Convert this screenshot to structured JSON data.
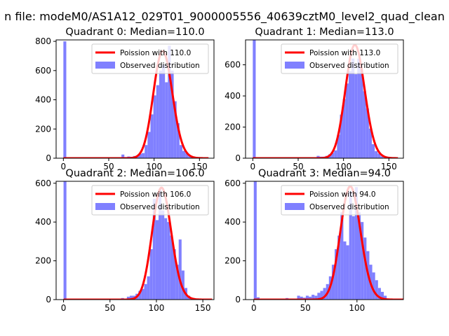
{
  "figure": {
    "suptitle": "n file: modeM0/AS1A12_029T01_9000005556_40639cztM0_level2_quad_clean"
  },
  "colors": {
    "fit_line": "#ff0000",
    "histogram": "#8080ff",
    "axis": "#000000"
  },
  "chart_data": [
    {
      "type": "bar",
      "title": "Quadrant 0: Median=110.0",
      "xlim": [
        -8,
        166
      ],
      "ylim": [
        0,
        810
      ],
      "xticks": [
        0,
        50,
        100,
        150
      ],
      "yticks": [
        0,
        200,
        400,
        600,
        800
      ],
      "legend": {
        "placement": "upper-right",
        "entries": [
          "Poission with 110.0",
          "Observed distribution"
        ]
      },
      "series": [
        {
          "name": "Poission with 110.0",
          "kind": "line",
          "mean": 110.0,
          "scale": 19300
        },
        {
          "name": "Observed distribution",
          "kind": "histogram",
          "bin_width": 3.2,
          "bins": [
            {
              "x": 0,
              "y": 800
            },
            {
              "x": 64,
              "y": 25
            },
            {
              "x": 67.2,
              "y": 8
            },
            {
              "x": 70.4,
              "y": 12
            },
            {
              "x": 73.6,
              "y": 10
            },
            {
              "x": 76.8,
              "y": 15
            },
            {
              "x": 80,
              "y": 15
            },
            {
              "x": 83.2,
              "y": 30
            },
            {
              "x": 86.4,
              "y": 35
            },
            {
              "x": 89.6,
              "y": 90
            },
            {
              "x": 92.8,
              "y": 180
            },
            {
              "x": 96,
              "y": 300
            },
            {
              "x": 99.2,
              "y": 430
            },
            {
              "x": 102.4,
              "y": 500
            },
            {
              "x": 105.6,
              "y": 600
            },
            {
              "x": 108.8,
              "y": 640
            },
            {
              "x": 112,
              "y": 520
            },
            {
              "x": 115.2,
              "y": 770
            },
            {
              "x": 118.4,
              "y": 600
            },
            {
              "x": 121.6,
              "y": 390
            },
            {
              "x": 124.8,
              "y": 240
            },
            {
              "x": 128,
              "y": 90
            },
            {
              "x": 131.2,
              "y": 50
            },
            {
              "x": 134.4,
              "y": 35
            },
            {
              "x": 137.6,
              "y": 20
            },
            {
              "x": 140.8,
              "y": 8
            }
          ]
        }
      ]
    },
    {
      "type": "bar",
      "title": "Quadrant 1: Median=113.0",
      "xlim": [
        -8,
        166
      ],
      "ylim": [
        0,
        760
      ],
      "xticks": [
        0,
        50,
        100,
        150
      ],
      "yticks": [
        0,
        200,
        400,
        600
      ],
      "legend": {
        "placement": "upper-right",
        "entries": [
          "Poission with 113.0",
          "Observed distribution"
        ]
      },
      "series": [
        {
          "name": "Poission with 113.0",
          "kind": "line",
          "mean": 113.0,
          "scale": 19400
        },
        {
          "name": "Observed distribution",
          "kind": "histogram",
          "bin_width": 3.2,
          "bins": [
            {
              "x": 0,
              "y": 760
            },
            {
              "x": 70.4,
              "y": 15
            },
            {
              "x": 73.6,
              "y": 10
            },
            {
              "x": 76.8,
              "y": 10
            },
            {
              "x": 80,
              "y": 15
            },
            {
              "x": 83.2,
              "y": 25
            },
            {
              "x": 86.4,
              "y": 35
            },
            {
              "x": 89.6,
              "y": 50
            },
            {
              "x": 92.8,
              "y": 150
            },
            {
              "x": 96,
              "y": 280
            },
            {
              "x": 99.2,
              "y": 380
            },
            {
              "x": 102.4,
              "y": 480
            },
            {
              "x": 105.6,
              "y": 560
            },
            {
              "x": 108.8,
              "y": 640
            },
            {
              "x": 112,
              "y": 540
            },
            {
              "x": 115.2,
              "y": 640
            },
            {
              "x": 118.4,
              "y": 570
            },
            {
              "x": 121.6,
              "y": 430
            },
            {
              "x": 124.8,
              "y": 320
            },
            {
              "x": 128,
              "y": 190
            },
            {
              "x": 131.2,
              "y": 90
            },
            {
              "x": 134.4,
              "y": 45
            },
            {
              "x": 137.6,
              "y": 30
            },
            {
              "x": 140.8,
              "y": 12
            }
          ]
        }
      ]
    },
    {
      "type": "bar",
      "title": "Quadrant 2: Median=106.0",
      "xlim": [
        -8,
        162
      ],
      "ylim": [
        0,
        610
      ],
      "xticks": [
        0,
        50,
        100,
        150
      ],
      "yticks": [
        0,
        200,
        400,
        600
      ],
      "legend": {
        "placement": "upper-right",
        "entries": [
          "Poission with 106.0",
          "Observed distribution"
        ]
      },
      "series": [
        {
          "name": "Poission with 106.0",
          "kind": "line",
          "mean": 106.0,
          "scale": 14900
        },
        {
          "name": "Observed distribution",
          "kind": "histogram",
          "bin_width": 3.1,
          "bins": [
            {
              "x": 0,
              "y": 610
            },
            {
              "x": 62,
              "y": 8
            },
            {
              "x": 65.1,
              "y": 5
            },
            {
              "x": 68.2,
              "y": 15
            },
            {
              "x": 71.3,
              "y": 20
            },
            {
              "x": 74.4,
              "y": 20
            },
            {
              "x": 77.5,
              "y": 30
            },
            {
              "x": 80.6,
              "y": 45
            },
            {
              "x": 83.7,
              "y": 55
            },
            {
              "x": 86.8,
              "y": 80
            },
            {
              "x": 89.9,
              "y": 120
            },
            {
              "x": 93,
              "y": 260
            },
            {
              "x": 96.1,
              "y": 520
            },
            {
              "x": 99.2,
              "y": 410
            },
            {
              "x": 102.3,
              "y": 570
            },
            {
              "x": 105.4,
              "y": 460
            },
            {
              "x": 108.5,
              "y": 420
            },
            {
              "x": 111.6,
              "y": 400
            },
            {
              "x": 114.7,
              "y": 330
            },
            {
              "x": 117.8,
              "y": 260
            },
            {
              "x": 120.9,
              "y": 180
            },
            {
              "x": 124,
              "y": 310
            },
            {
              "x": 127.1,
              "y": 150
            },
            {
              "x": 130.2,
              "y": 60
            },
            {
              "x": 133.3,
              "y": 20
            },
            {
              "x": 136.4,
              "y": 8
            }
          ]
        }
      ]
    },
    {
      "type": "bar",
      "title": "Quadrant 3: Median=94.0",
      "xlim": [
        -8,
        145
      ],
      "ylim": [
        0,
        610
      ],
      "xticks": [
        0,
        50,
        100
      ],
      "yticks": [
        0,
        200,
        400,
        600
      ],
      "legend": {
        "placement": "upper-right",
        "entries": [
          "Poission with 94.0",
          "Observed distribution"
        ]
      },
      "series": [
        {
          "name": "Poission with 94.0",
          "kind": "line",
          "mean": 94.0,
          "scale": 14200
        },
        {
          "name": "Observed distribution",
          "kind": "histogram",
          "bin_width": 2.8,
          "bins": [
            {
              "x": 0,
              "y": 610
            },
            {
              "x": 2.8,
              "y": 12
            },
            {
              "x": 11.2,
              "y": 5
            },
            {
              "x": 30.8,
              "y": 8
            },
            {
              "x": 36.4,
              "y": 5
            },
            {
              "x": 42,
              "y": 20
            },
            {
              "x": 44.8,
              "y": 15
            },
            {
              "x": 47.6,
              "y": 10
            },
            {
              "x": 50.4,
              "y": 20
            },
            {
              "x": 53.2,
              "y": 15
            },
            {
              "x": 56,
              "y": 25
            },
            {
              "x": 58.8,
              "y": 20
            },
            {
              "x": 61.6,
              "y": 35
            },
            {
              "x": 64.4,
              "y": 45
            },
            {
              "x": 67.2,
              "y": 60
            },
            {
              "x": 70,
              "y": 80
            },
            {
              "x": 72.8,
              "y": 120
            },
            {
              "x": 75.6,
              "y": 180
            },
            {
              "x": 78.4,
              "y": 260
            },
            {
              "x": 81.2,
              "y": 330
            },
            {
              "x": 84,
              "y": 450
            },
            {
              "x": 86.8,
              "y": 300
            },
            {
              "x": 89.6,
              "y": 280
            },
            {
              "x": 92.4,
              "y": 560
            },
            {
              "x": 95.2,
              "y": 430
            },
            {
              "x": 98,
              "y": 580
            },
            {
              "x": 100.8,
              "y": 450
            },
            {
              "x": 103.6,
              "y": 400
            },
            {
              "x": 106.4,
              "y": 320
            },
            {
              "x": 109.2,
              "y": 250
            },
            {
              "x": 112,
              "y": 180
            },
            {
              "x": 114.8,
              "y": 140
            },
            {
              "x": 117.6,
              "y": 100
            },
            {
              "x": 120.4,
              "y": 60
            },
            {
              "x": 123.2,
              "y": 40
            },
            {
              "x": 126,
              "y": 20
            }
          ]
        }
      ]
    }
  ]
}
